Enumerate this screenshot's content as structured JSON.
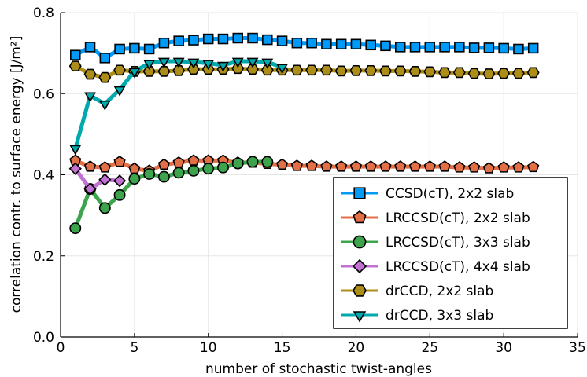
{
  "chart_data": {
    "type": "line",
    "xlabel": "number of stochastic twist-angles",
    "ylabel": "correlation contr. to surface energy [J/m²]",
    "xlim": [
      0,
      35
    ],
    "ylim": [
      0.0,
      0.8
    ],
    "xticks": [
      "0",
      "5",
      "10",
      "15",
      "20",
      "25",
      "30",
      "35"
    ],
    "yticks": [
      "0.0",
      "0.2",
      "0.4",
      "0.6",
      "0.8"
    ],
    "grid": true,
    "legend_position": "bottom-right",
    "series": [
      {
        "name": "CCSD(cT), 2x2 slab",
        "color": "#009af9",
        "marker": "square",
        "x": [
          1,
          2,
          3,
          4,
          5,
          6,
          7,
          8,
          9,
          10,
          11,
          12,
          13,
          14,
          15,
          16,
          17,
          18,
          19,
          20,
          21,
          22,
          23,
          24,
          25,
          26,
          27,
          28,
          29,
          30,
          31,
          32
        ],
        "y": [
          0.695,
          0.715,
          0.688,
          0.71,
          0.712,
          0.71,
          0.725,
          0.73,
          0.732,
          0.735,
          0.735,
          0.737,
          0.737,
          0.733,
          0.73,
          0.725,
          0.725,
          0.722,
          0.722,
          0.722,
          0.72,
          0.718,
          0.715,
          0.715,
          0.715,
          0.715,
          0.715,
          0.713,
          0.713,
          0.712,
          0.71,
          0.712
        ]
      },
      {
        "name": "LRCCSD(cT), 2x2 slab",
        "color": "#e26f46",
        "marker": "pentagon",
        "x": [
          1,
          2,
          3,
          4,
          5,
          6,
          7,
          8,
          9,
          10,
          11,
          12,
          13,
          14,
          15,
          16,
          17,
          18,
          19,
          20,
          21,
          22,
          23,
          24,
          25,
          26,
          27,
          28,
          29,
          30,
          31,
          32
        ],
        "y": [
          0.435,
          0.42,
          0.418,
          0.432,
          0.415,
          0.41,
          0.425,
          0.43,
          0.435,
          0.435,
          0.435,
          0.43,
          0.43,
          0.427,
          0.425,
          0.422,
          0.422,
          0.42,
          0.42,
          0.42,
          0.42,
          0.42,
          0.42,
          0.42,
          0.42,
          0.42,
          0.418,
          0.418,
          0.416,
          0.418,
          0.418,
          0.419
        ]
      },
      {
        "name": "LRCCSD(cT), 3x3 slab",
        "color": "#3da44d",
        "marker": "circle",
        "x": [
          1,
          2,
          3,
          4,
          5,
          6,
          7,
          8,
          9,
          10,
          11,
          12,
          13,
          14
        ],
        "y": [
          0.268,
          0.365,
          0.318,
          0.35,
          0.39,
          0.402,
          0.395,
          0.405,
          0.41,
          0.415,
          0.418,
          0.428,
          0.432,
          0.432
        ]
      },
      {
        "name": "LRCCSD(cT), 4x4 slab",
        "color": "#c271d2",
        "marker": "diamond",
        "x": [
          1,
          2,
          3,
          4
        ],
        "y": [
          0.415,
          0.365,
          0.388,
          0.385
        ]
      },
      {
        "name": "drCCD, 2x2 slab",
        "color": "#ac8d18",
        "marker": "hexagon",
        "x": [
          1,
          2,
          3,
          4,
          5,
          6,
          7,
          8,
          9,
          10,
          11,
          12,
          13,
          14,
          15,
          16,
          17,
          18,
          19,
          20,
          21,
          22,
          23,
          24,
          25,
          26,
          27,
          28,
          29,
          30,
          31,
          32
        ],
        "y": [
          0.668,
          0.648,
          0.64,
          0.658,
          0.655,
          0.655,
          0.655,
          0.657,
          0.66,
          0.66,
          0.66,
          0.662,
          0.66,
          0.658,
          0.658,
          0.658,
          0.658,
          0.658,
          0.656,
          0.657,
          0.657,
          0.656,
          0.656,
          0.655,
          0.654,
          0.652,
          0.652,
          0.65,
          0.649,
          0.65,
          0.65,
          0.652
        ]
      },
      {
        "name": "drCCD, 3x3 slab",
        "color": "#00a9ad",
        "marker": "triangle-down",
        "x": [
          1,
          2,
          3,
          4,
          5,
          6,
          7,
          8,
          9,
          10,
          11,
          12,
          13,
          14,
          15
        ],
        "y": [
          0.465,
          0.595,
          0.575,
          0.61,
          0.655,
          0.675,
          0.68,
          0.68,
          0.678,
          0.675,
          0.67,
          0.68,
          0.68,
          0.678,
          0.665
        ]
      }
    ]
  }
}
